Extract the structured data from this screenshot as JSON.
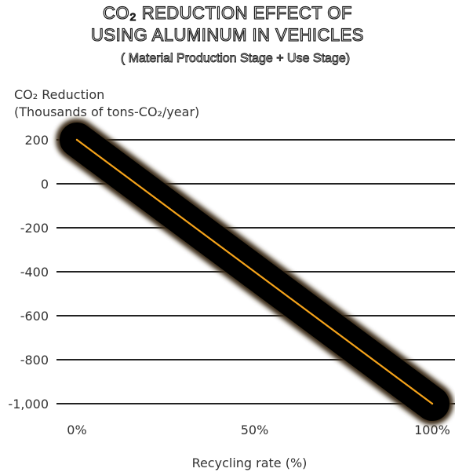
{
  "chart_data": {
    "type": "line",
    "title": [
      "CO₂ REDUCTION EFFECT OF",
      "USING ALUMINUM IN VEHICLES"
    ],
    "subtitle": "( Material Production Stage + Use Stage)",
    "ylabel": [
      "CO₂ Reduction",
      "(Thousands of tons-CO₂/year)"
    ],
    "xlabel": "Recycling rate (%)",
    "ylim": [
      -1000,
      200
    ],
    "xlim": [
      0,
      100
    ],
    "yticks": [
      200,
      0,
      -200,
      -400,
      -600,
      -800,
      -1000
    ],
    "ytick_labels": [
      "200",
      "0",
      "-200",
      "-400",
      "-600",
      "-800",
      "-1,000"
    ],
    "xticks": [
      0,
      50,
      100
    ],
    "xtick_labels": [
      "0%",
      "50%",
      "100%"
    ],
    "grid": true,
    "series": [
      {
        "x": [
          0,
          100
        ],
        "y": [
          200,
          -1000
        ]
      }
    ],
    "colors": {
      "line": "#f5a31a",
      "glow": "#000000",
      "grid": "#222222"
    }
  }
}
